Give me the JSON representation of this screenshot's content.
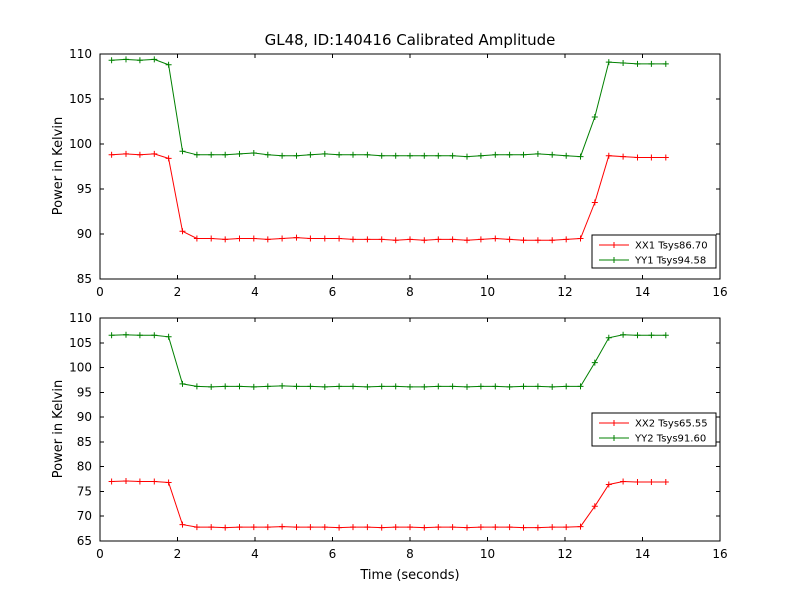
{
  "figure": {
    "title": "GL48, ID:140416 Calibrated Amplitude",
    "background": "#ffffff",
    "axis_color": "#000000"
  },
  "chart_data": [
    {
      "type": "line",
      "title": "",
      "xlabel": "",
      "ylabel": "Power in Kelvin",
      "xlim": [
        0,
        16
      ],
      "ylim": [
        85,
        110
      ],
      "xticks": [
        0,
        2,
        4,
        6,
        8,
        10,
        12,
        14,
        16
      ],
      "yticks": [
        85,
        90,
        95,
        100,
        105,
        110
      ],
      "grid": false,
      "legend_position": "lower-right-inside",
      "marker": "plus",
      "x": [
        0.3,
        0.67,
        1.03,
        1.4,
        1.77,
        2.13,
        2.5,
        2.87,
        3.23,
        3.6,
        3.97,
        4.33,
        4.7,
        5.07,
        5.43,
        5.8,
        6.17,
        6.53,
        6.9,
        7.27,
        7.63,
        8.0,
        8.37,
        8.73,
        9.1,
        9.47,
        9.83,
        10.2,
        10.57,
        10.93,
        11.3,
        11.67,
        12.03,
        12.4,
        12.77,
        13.13,
        13.5,
        13.87,
        14.23,
        14.6
      ],
      "series": [
        {
          "name": "XX1 Tsys86.70",
          "color": "#ff0000",
          "values": [
            98.8,
            98.9,
            98.8,
            98.9,
            98.4,
            90.3,
            89.5,
            89.5,
            89.4,
            89.5,
            89.5,
            89.4,
            89.5,
            89.6,
            89.5,
            89.5,
            89.5,
            89.4,
            89.4,
            89.4,
            89.3,
            89.4,
            89.3,
            89.4,
            89.4,
            89.3,
            89.4,
            89.5,
            89.4,
            89.3,
            89.3,
            89.3,
            89.4,
            89.5,
            93.5,
            98.7,
            98.6,
            98.5,
            98.5,
            98.5
          ]
        },
        {
          "name": "YY1 Tsys94.58",
          "color": "#008000",
          "values": [
            109.3,
            109.4,
            109.3,
            109.4,
            108.8,
            99.2,
            98.8,
            98.8,
            98.8,
            98.9,
            99.0,
            98.8,
            98.7,
            98.7,
            98.8,
            98.9,
            98.8,
            98.8,
            98.8,
            98.7,
            98.7,
            98.7,
            98.7,
            98.7,
            98.7,
            98.6,
            98.7,
            98.8,
            98.8,
            98.8,
            98.9,
            98.8,
            98.7,
            98.6,
            103.0,
            109.1,
            109.0,
            108.9,
            108.9,
            108.9
          ]
        }
      ]
    },
    {
      "type": "line",
      "title": "",
      "xlabel": "Time (seconds)",
      "ylabel": "Power in Kelvin",
      "xlim": [
        0,
        16
      ],
      "ylim": [
        65,
        110
      ],
      "xticks": [
        0,
        2,
        4,
        6,
        8,
        10,
        12,
        14,
        16
      ],
      "yticks": [
        65,
        70,
        75,
        80,
        85,
        90,
        95,
        100,
        105,
        110
      ],
      "grid": false,
      "legend_position": "middle-right-inside",
      "marker": "plus",
      "x": [
        0.3,
        0.67,
        1.03,
        1.4,
        1.77,
        2.13,
        2.5,
        2.87,
        3.23,
        3.6,
        3.97,
        4.33,
        4.7,
        5.07,
        5.43,
        5.8,
        6.17,
        6.53,
        6.9,
        7.27,
        7.63,
        8.0,
        8.37,
        8.73,
        9.1,
        9.47,
        9.83,
        10.2,
        10.57,
        10.93,
        11.3,
        11.67,
        12.03,
        12.4,
        12.77,
        13.13,
        13.5,
        13.87,
        14.23,
        14.6
      ],
      "series": [
        {
          "name": "XX2 Tsys65.55",
          "color": "#ff0000",
          "values": [
            77.0,
            77.1,
            77.0,
            77.0,
            76.8,
            68.3,
            67.8,
            67.8,
            67.7,
            67.8,
            67.8,
            67.8,
            67.9,
            67.8,
            67.8,
            67.8,
            67.7,
            67.8,
            67.8,
            67.7,
            67.8,
            67.8,
            67.7,
            67.8,
            67.8,
            67.7,
            67.8,
            67.8,
            67.8,
            67.7,
            67.7,
            67.8,
            67.8,
            67.9,
            72.0,
            76.4,
            77.0,
            76.9,
            76.9,
            76.9
          ]
        },
        {
          "name": "YY2 Tsys91.60",
          "color": "#008000",
          "values": [
            106.5,
            106.6,
            106.5,
            106.5,
            106.2,
            96.7,
            96.2,
            96.1,
            96.2,
            96.2,
            96.1,
            96.2,
            96.3,
            96.2,
            96.2,
            96.1,
            96.2,
            96.2,
            96.1,
            96.2,
            96.2,
            96.1,
            96.1,
            96.2,
            96.2,
            96.1,
            96.2,
            96.2,
            96.1,
            96.2,
            96.2,
            96.1,
            96.2,
            96.2,
            101.0,
            106.0,
            106.6,
            106.5,
            106.5,
            106.5
          ]
        }
      ]
    }
  ]
}
